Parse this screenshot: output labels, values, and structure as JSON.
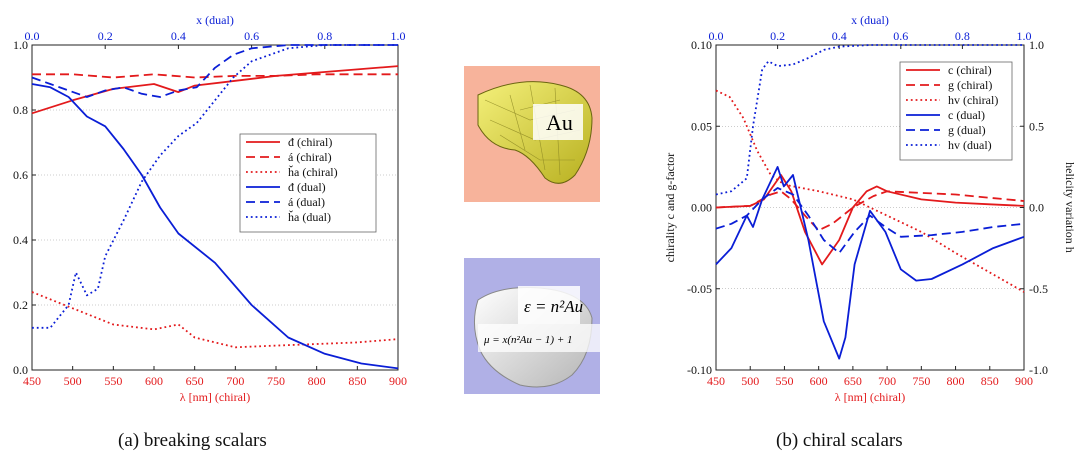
{
  "captions": {
    "a": "(a) breaking scalars",
    "b": "(b) chiral scalars"
  },
  "insets": {
    "au_label": "Au",
    "eps_label": "ε = n²Au",
    "mu_label": "μ = x(n²Au − 1) + 1"
  },
  "colors": {
    "red": "#e31a1c",
    "blue": "#0a1ed6",
    "inset_top_bg": "#f7b39b",
    "inset_bottom_bg": "#b0b0e6"
  },
  "chart_data": [
    {
      "type": "line",
      "xlabel": "λ [nm] (chiral)",
      "x2label": "x (dual)",
      "xlim": [
        450,
        900
      ],
      "x2lim": [
        0,
        1
      ],
      "ylim": [
        0,
        1
      ],
      "x_ticks": [
        "450",
        "500",
        "550",
        "600",
        "650",
        "700",
        "750",
        "800",
        "850",
        "900"
      ],
      "x2_ticks": [
        "0.0",
        "0.2",
        "0.4",
        "0.6",
        "0.8",
        "1.0"
      ],
      "y_ticks": [
        "0.0",
        "0.2",
        "0.4",
        "0.6",
        "0.8",
        "1.0"
      ],
      "grid": true,
      "legend": "center-right",
      "series": [
        {
          "name": "đ (chiral)",
          "color": "red",
          "dash": "solid",
          "x": [
            450,
            500,
            550,
            600,
            630,
            650,
            700,
            750,
            800,
            850,
            900
          ],
          "y": [
            0.79,
            0.83,
            0.865,
            0.88,
            0.855,
            0.875,
            0.89,
            0.905,
            0.915,
            0.925,
            0.935
          ]
        },
        {
          "name": "á (chiral)",
          "color": "red",
          "dash": "dash",
          "x": [
            450,
            500,
            550,
            600,
            650,
            700,
            750,
            800,
            850,
            900
          ],
          "y": [
            0.91,
            0.91,
            0.9,
            0.91,
            0.9,
            0.905,
            0.905,
            0.91,
            0.91,
            0.91
          ]
        },
        {
          "name": "ȟa (chiral)",
          "color": "red",
          "dash": "dot",
          "x": [
            450,
            500,
            550,
            600,
            630,
            650,
            700,
            750,
            800,
            850,
            900
          ],
          "y": [
            0.24,
            0.19,
            0.14,
            0.125,
            0.14,
            0.1,
            0.07,
            0.075,
            0.08,
            0.085,
            0.095
          ]
        },
        {
          "name": "đ (dual)",
          "color": "blue",
          "dash": "solid",
          "x": [
            0,
            0.05,
            0.1,
            0.15,
            0.2,
            0.25,
            0.3,
            0.35,
            0.4,
            0.5,
            0.6,
            0.7,
            0.8,
            0.9,
            1.0
          ],
          "y": [
            0.88,
            0.87,
            0.84,
            0.78,
            0.75,
            0.68,
            0.6,
            0.5,
            0.42,
            0.33,
            0.2,
            0.1,
            0.05,
            0.02,
            0.005
          ]
        },
        {
          "name": "á (dual)",
          "color": "blue",
          "dash": "dash",
          "x": [
            0,
            0.05,
            0.1,
            0.15,
            0.2,
            0.25,
            0.3,
            0.35,
            0.4,
            0.45,
            0.5,
            0.55,
            0.6,
            0.7,
            0.8,
            0.9,
            1.0
          ],
          "y": [
            0.9,
            0.88,
            0.86,
            0.84,
            0.86,
            0.87,
            0.85,
            0.84,
            0.86,
            0.87,
            0.93,
            0.97,
            0.99,
            1.0,
            1.0,
            1.0,
            1.0
          ]
        },
        {
          "name": "ȟa (dual)",
          "color": "blue",
          "dash": "dot",
          "x": [
            0,
            0.05,
            0.1,
            0.12,
            0.15,
            0.18,
            0.2,
            0.25,
            0.3,
            0.35,
            0.4,
            0.45,
            0.5,
            0.55,
            0.6,
            0.7,
            0.8,
            1.0
          ],
          "y": [
            0.13,
            0.13,
            0.2,
            0.3,
            0.23,
            0.25,
            0.35,
            0.46,
            0.58,
            0.66,
            0.72,
            0.76,
            0.83,
            0.9,
            0.95,
            0.99,
            1.0,
            1.0
          ]
        }
      ]
    },
    {
      "type": "line",
      "xlabel": "λ [nm] (chiral)",
      "x2label": "x (dual)",
      "ylabel": "chirality c and g-factor",
      "y2label": "helicity variation h",
      "xlim": [
        450,
        900
      ],
      "x2lim": [
        0,
        1
      ],
      "ylim": [
        -0.1,
        0.1
      ],
      "y2lim": [
        -1,
        1
      ],
      "x_ticks": [
        "450",
        "500",
        "550",
        "600",
        "650",
        "700",
        "750",
        "800",
        "850",
        "900"
      ],
      "x2_ticks": [
        "0.0",
        "0.2",
        "0.4",
        "0.6",
        "0.8",
        "1.0"
      ],
      "y_ticks": [
        "-0.10",
        "-0.05",
        "0.00",
        "0.05",
        "0.10"
      ],
      "y2_ticks": [
        "-1.0",
        "-0.5",
        "0.0",
        "0.5",
        "1.0"
      ],
      "grid": true,
      "legend": "top-right",
      "series": [
        {
          "name": "c (chiral)",
          "color": "red",
          "dash": "solid",
          "axis": "left",
          "x": [
            450,
            500,
            520,
            545,
            560,
            580,
            605,
            630,
            650,
            670,
            685,
            700,
            750,
            800,
            850,
            900
          ],
          "y": [
            0,
            0.001,
            0.005,
            0.02,
            0.01,
            -0.015,
            -0.035,
            -0.02,
            0,
            0.01,
            0.013,
            0.01,
            0.005,
            0.003,
            0.002,
            0.001
          ]
        },
        {
          "name": "g (chiral)",
          "color": "red",
          "dash": "dash",
          "axis": "left",
          "x": [
            450,
            500,
            530,
            545,
            560,
            580,
            600,
            620,
            650,
            680,
            700,
            750,
            800,
            850,
            900
          ],
          "y": [
            0,
            0.001,
            0.008,
            0.01,
            0.005,
            -0.005,
            -0.014,
            -0.01,
            0,
            0.007,
            0.01,
            0.009,
            0.008,
            0.006,
            0.004
          ]
        },
        {
          "name": "hv (chiral)",
          "color": "red",
          "dash": "dot",
          "axis": "right",
          "x": [
            450,
            470,
            490,
            510,
            530,
            550,
            600,
            650,
            700,
            750,
            800,
            850,
            900
          ],
          "y": [
            0.72,
            0.68,
            0.55,
            0.35,
            0.2,
            0.14,
            0.1,
            0.05,
            -0.05,
            -0.15,
            -0.28,
            -0.4,
            -0.52
          ]
        },
        {
          "name": "c (dual)",
          "color": "blue",
          "dash": "solid",
          "axis": "left",
          "x": [
            0,
            0.05,
            0.1,
            0.12,
            0.15,
            0.2,
            0.22,
            0.25,
            0.3,
            0.35,
            0.4,
            0.42,
            0.45,
            0.5,
            0.55,
            0.6,
            0.65,
            0.7,
            0.8,
            0.9,
            1.0
          ],
          "y": [
            -0.035,
            -0.025,
            -0.005,
            -0.012,
            0.005,
            0.025,
            0.013,
            0.02,
            -0.02,
            -0.07,
            -0.093,
            -0.08,
            -0.035,
            -0.002,
            -0.015,
            -0.038,
            -0.045,
            -0.044,
            -0.035,
            -0.025,
            -0.018
          ]
        },
        {
          "name": "g (dual)",
          "color": "blue",
          "dash": "dash",
          "axis": "left",
          "x": [
            0,
            0.05,
            0.1,
            0.15,
            0.2,
            0.25,
            0.3,
            0.35,
            0.4,
            0.45,
            0.5,
            0.55,
            0.6,
            0.7,
            0.8,
            0.9,
            1.0
          ],
          "y": [
            -0.013,
            -0.01,
            -0.005,
            0.005,
            0.012,
            0.008,
            -0.005,
            -0.02,
            -0.028,
            -0.015,
            -0.005,
            -0.012,
            -0.018,
            -0.017,
            -0.015,
            -0.012,
            -0.01
          ]
        },
        {
          "name": "hv (dual)",
          "color": "blue",
          "dash": "dot",
          "axis": "right",
          "x": [
            0,
            0.05,
            0.1,
            0.12,
            0.15,
            0.17,
            0.2,
            0.25,
            0.3,
            0.35,
            0.4,
            0.5,
            0.6,
            0.8,
            1.0
          ],
          "y": [
            0.08,
            0.1,
            0.18,
            0.5,
            0.85,
            0.9,
            0.87,
            0.88,
            0.92,
            0.97,
            0.99,
            1.0,
            1.0,
            1.0,
            1.0
          ]
        }
      ]
    }
  ]
}
